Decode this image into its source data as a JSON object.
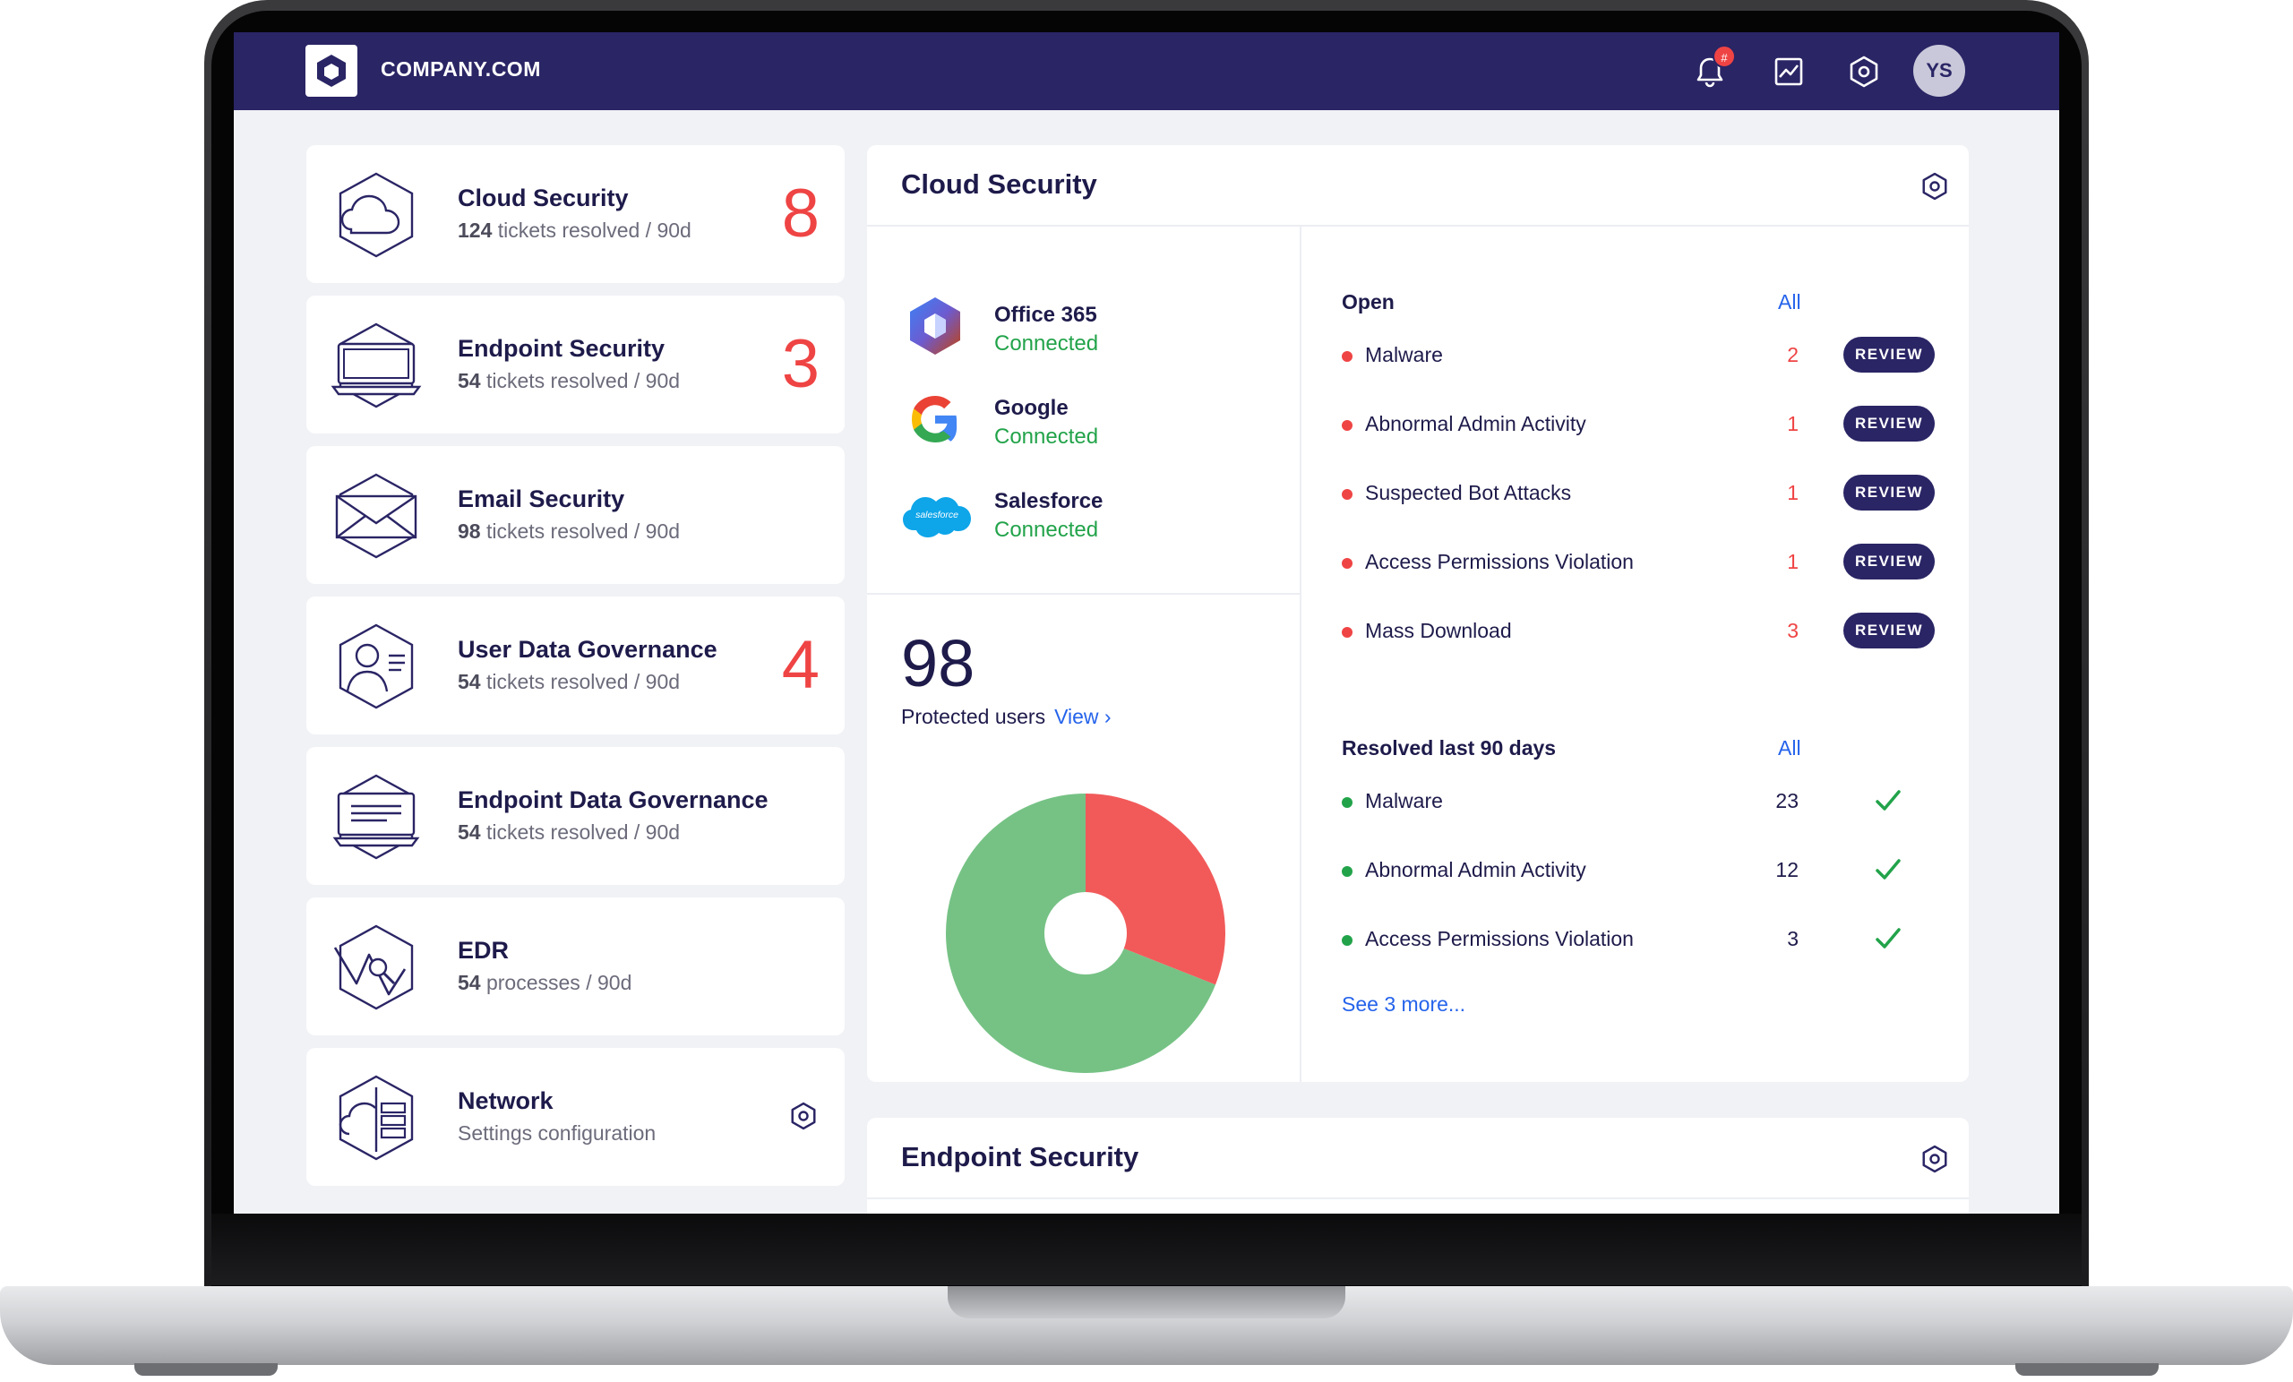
{
  "header": {
    "brand": "COMPANY.COM",
    "notification_badge": "#",
    "avatar_initials": "YS",
    "icons": [
      "bell-icon",
      "chart-icon",
      "settings-icon"
    ]
  },
  "sidebar": {
    "cards": [
      {
        "title": "Cloud Security",
        "count_prefix": "124",
        "subtitle": "tickets resolved / 90d",
        "alert_count": "8",
        "icon": "cloud-icon"
      },
      {
        "title": "Endpoint Security",
        "count_prefix": "54",
        "subtitle": "tickets resolved / 90d",
        "alert_count": "3",
        "icon": "laptop-icon"
      },
      {
        "title": "Email Security",
        "count_prefix": "98",
        "subtitle": "tickets resolved / 90d",
        "alert_count": "",
        "icon": "envelope-icon"
      },
      {
        "title": "User Data Governance",
        "count_prefix": "54",
        "subtitle": "tickets resolved / 90d",
        "alert_count": "4",
        "icon": "user-id-icon"
      },
      {
        "title": "Endpoint Data Governance",
        "count_prefix": "54",
        "subtitle": "tickets resolved / 90d",
        "alert_count": "",
        "icon": "monitor-doc-icon"
      },
      {
        "title": "EDR",
        "count_prefix": "54",
        "subtitle": "processes / 90d",
        "alert_count": "",
        "icon": "edr-icon"
      },
      {
        "title": "Network",
        "count_prefix": "",
        "subtitle": "Settings configuration",
        "alert_count": "",
        "icon": "network-icon"
      }
    ]
  },
  "cloud_panel": {
    "title": "Cloud Security",
    "services": [
      {
        "name": "Office 365",
        "status": "Connected"
      },
      {
        "name": "Google",
        "status": "Connected"
      },
      {
        "name": "Salesforce",
        "status": "Connected",
        "logo_text": "salesforce"
      }
    ],
    "protected_count": "98",
    "protected_label": "Protected users",
    "view_link": "View ›",
    "open": {
      "heading": "Open",
      "all_link": "All",
      "review_label": "REVIEW",
      "items": [
        {
          "label": "Malware",
          "count": "2"
        },
        {
          "label": "Abnormal Admin Activity",
          "count": "1"
        },
        {
          "label": "Suspected Bot Attacks",
          "count": "1"
        },
        {
          "label": "Access Permissions Violation",
          "count": "1"
        },
        {
          "label": "Mass Download",
          "count": "3"
        }
      ]
    },
    "resolved": {
      "heading": "Resolved last 90 days",
      "all_link": "All",
      "items": [
        {
          "label": "Malware",
          "count": "23"
        },
        {
          "label": "Abnormal Admin Activity",
          "count": "12"
        },
        {
          "label": "Access Permissions Violation",
          "count": "3"
        }
      ],
      "more_link": "See 3 more..."
    },
    "donut": {
      "open_fraction": 0.31,
      "colors": {
        "open": "#f25a5a",
        "resolved": "#76c285"
      }
    }
  },
  "endpoint_panel": {
    "title": "Endpoint Security"
  },
  "colors": {
    "nav": "#2a2565",
    "alert": "#ef4444",
    "ok": "#22a34a",
    "link": "#2563eb"
  }
}
